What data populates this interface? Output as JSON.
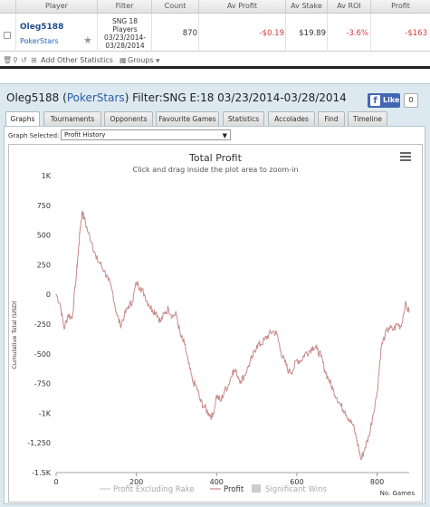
{
  "stats_table": {
    "headers": {
      "player": "Player",
      "filter": "Filter",
      "count": "Count",
      "av_profit": "Av Profit",
      "av_stake": "Av Stake",
      "av_roi": "Av ROI",
      "profit": "Profit"
    },
    "row": {
      "player_name": "Oleg5188",
      "site": "PokerStars",
      "filter_lines": [
        "SNG 18",
        "Players",
        "03/23/2014-",
        "03/28/2014"
      ],
      "count": "870",
      "av_profit": "-$0.19",
      "av_stake": "$19.89",
      "av_roi": "-3.6%",
      "profit": "-$163"
    },
    "toolbar": {
      "add_stats": "Add Other Statistics",
      "groups": "Groups"
    }
  },
  "report": {
    "title_prefix": "Oleg5188 (",
    "title_site": "PokerStars",
    "title_suffix": ") Filter:SNG E:18 03/23/2014-03/28/2014",
    "fb_like": "Like",
    "fb_count": "0",
    "tabs": [
      "Graphs",
      "Tournaments",
      "Opponents",
      "Favourite Games",
      "Statistics",
      "Accolades",
      "Find",
      "Timeline"
    ],
    "active_tab": "Graphs",
    "graph_selected_label": "Graph Selected:",
    "graph_selected_value": "Profit History"
  },
  "colors": {
    "profit_line": "#c98a8a",
    "positive": "#1f4e8c",
    "negative": "#d43b3b",
    "active_tab_bg": "#ffffff",
    "panel_bg": "#dde9f0"
  },
  "chart_data": {
    "type": "line",
    "title": "Total Profit",
    "subtitle": "Click and drag inside the plot area to zoom-in",
    "ylabel": "Cumulative Total (USD)",
    "xlabel": "No. Games",
    "xlim": [
      0,
      880
    ],
    "ylim": [
      -1500,
      1000
    ],
    "x_ticks": [
      "0",
      "200",
      "400",
      "600",
      "800"
    ],
    "y_ticks": [
      "1K",
      "750",
      "500",
      "250",
      "0",
      "-250",
      "-500",
      "-750",
      "-1K",
      "-1,250",
      "-1.5K"
    ],
    "legend": [
      "Profit Excluding Rake",
      "Profit",
      "Significant Wins"
    ],
    "legend_placement": "bottom",
    "grid": false,
    "series": [
      {
        "name": "Profit",
        "x": [
          0,
          10,
          20,
          30,
          40,
          50,
          55,
          60,
          65,
          70,
          80,
          90,
          100,
          110,
          120,
          130,
          140,
          150,
          160,
          170,
          180,
          190,
          200,
          210,
          220,
          230,
          240,
          250,
          260,
          270,
          280,
          290,
          300,
          310,
          320,
          330,
          340,
          350,
          360,
          370,
          380,
          390,
          400,
          410,
          420,
          430,
          440,
          450,
          460,
          470,
          480,
          490,
          500,
          510,
          520,
          530,
          540,
          550,
          560,
          570,
          580,
          590,
          600,
          610,
          620,
          630,
          640,
          650,
          660,
          670,
          680,
          690,
          700,
          710,
          720,
          730,
          740,
          750,
          760,
          770,
          780,
          790,
          800,
          810,
          820,
          830,
          840,
          850,
          860,
          870,
          880
        ],
        "values": [
          0,
          -80,
          -290,
          -170,
          -200,
          150,
          350,
          560,
          700,
          640,
          520,
          430,
          300,
          260,
          200,
          120,
          30,
          -150,
          -260,
          -180,
          -100,
          -60,
          100,
          60,
          0,
          -80,
          -130,
          -150,
          -230,
          -160,
          -120,
          -180,
          -170,
          -350,
          -420,
          -580,
          -730,
          -780,
          -900,
          -950,
          -1000,
          -1030,
          -850,
          -900,
          -810,
          -760,
          -640,
          -660,
          -730,
          -680,
          -600,
          -520,
          -430,
          -420,
          -380,
          -340,
          -310,
          -330,
          -480,
          -570,
          -650,
          -640,
          -550,
          -560,
          -500,
          -480,
          -440,
          -460,
          -520,
          -640,
          -720,
          -800,
          -870,
          -940,
          -980,
          -1050,
          -1100,
          -1230,
          -1390,
          -1290,
          -1190,
          -1010,
          -830,
          -450,
          -340,
          -280,
          -300,
          -250,
          -270,
          -80,
          -150
        ]
      }
    ]
  }
}
